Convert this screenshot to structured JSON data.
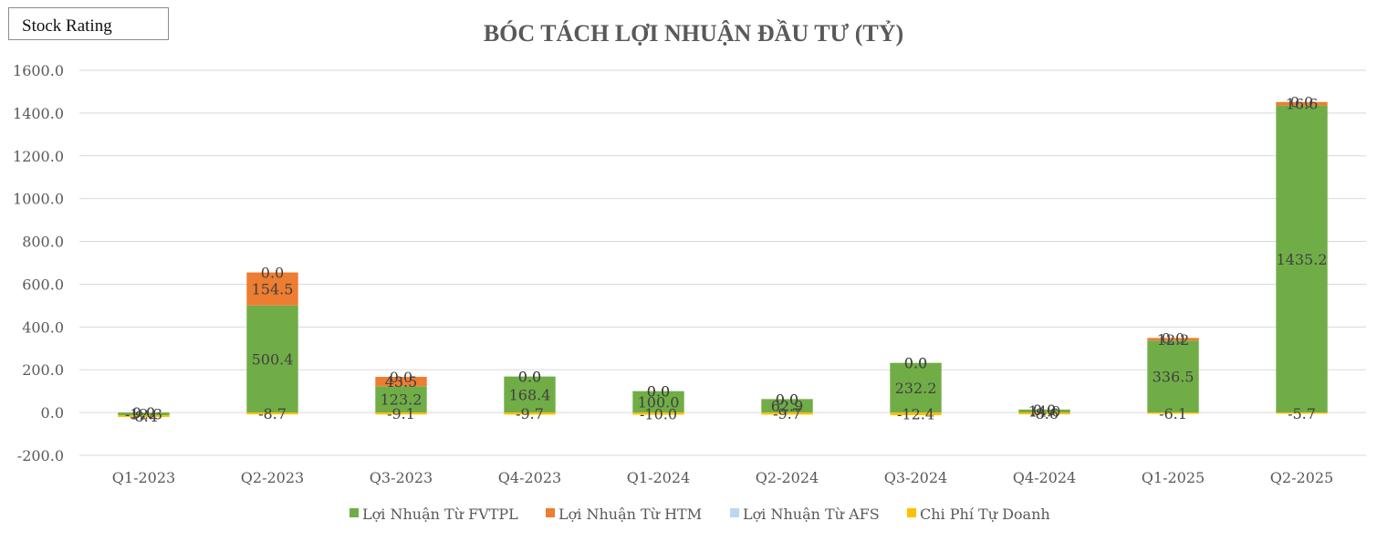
{
  "badge": {
    "label": "Stock Rating"
  },
  "chart_data": {
    "type": "bar",
    "stacked": true,
    "title": "BÓC TÁCH LỢI NHUẬN ĐẦU TƯ (TỶ)",
    "xlabel": "",
    "ylabel": "",
    "ylim": [
      -200,
      1600
    ],
    "yticks": [
      "-200.0",
      "0.0",
      "200.0",
      "400.0",
      "600.0",
      "800.0",
      "1000.0",
      "1200.0",
      "1400.0",
      "1600.0"
    ],
    "grid": true,
    "legend_position": "bottom",
    "categories": [
      "Q1-2023",
      "Q2-2023",
      "Q3-2023",
      "Q4-2023",
      "Q1-2024",
      "Q2-2024",
      "Q3-2024",
      "Q4-2024",
      "Q1-2025",
      "Q2-2025"
    ],
    "series": [
      {
        "name": "Lợi Nhuận Từ FVTPL",
        "color": "#70ad47",
        "values": [
          -12.3,
          500.4,
          123.2,
          168.4,
          100.0,
          62.9,
          232.2,
          14.0,
          336.5,
          1435.2
        ],
        "labels": [
          "-12.3",
          "500.4",
          "123.2",
          "168.4",
          "100.0",
          "62.9",
          "232.2",
          "14.0",
          "336.5",
          "1435.2"
        ]
      },
      {
        "name": "Lợi Nhuận Từ HTM",
        "color": "#ed7d31",
        "values": [
          0.0,
          154.5,
          43.5,
          0.0,
          0.0,
          0.0,
          0.0,
          0.0,
          12.2,
          16.6
        ],
        "labels": [
          "0.0",
          "154.5",
          "43.5",
          "0.0",
          "0.0",
          "0.0",
          "0.0",
          "0.0",
          "12.2",
          "16.6"
        ]
      },
      {
        "name": "Lợi Nhuận Từ AFS",
        "color": "#bdd7ee",
        "values": [
          0.0,
          0.0,
          0.0,
          0.0,
          0.0,
          0.0,
          0.0,
          0.0,
          0.0,
          0.0
        ],
        "labels": [
          "0.0",
          "0.0",
          "0.0",
          "0.0",
          "0.0",
          "0.0",
          "0.0",
          "0.0",
          "0.0",
          "0.0"
        ]
      },
      {
        "name": "Chi Phí Tự Doanh",
        "color": "#ffc000",
        "values": [
          -8.4,
          -8.7,
          -9.1,
          -9.7,
          -10.0,
          -9.7,
          -12.4,
          -8.6,
          -6.1,
          -5.7
        ],
        "labels": [
          "-8.4",
          "-8.7",
          "-9.1",
          "-9.7",
          "-10.0",
          "-9.7",
          "-12.4",
          "-8.6",
          "-6.1",
          "-5.7"
        ]
      }
    ]
  }
}
